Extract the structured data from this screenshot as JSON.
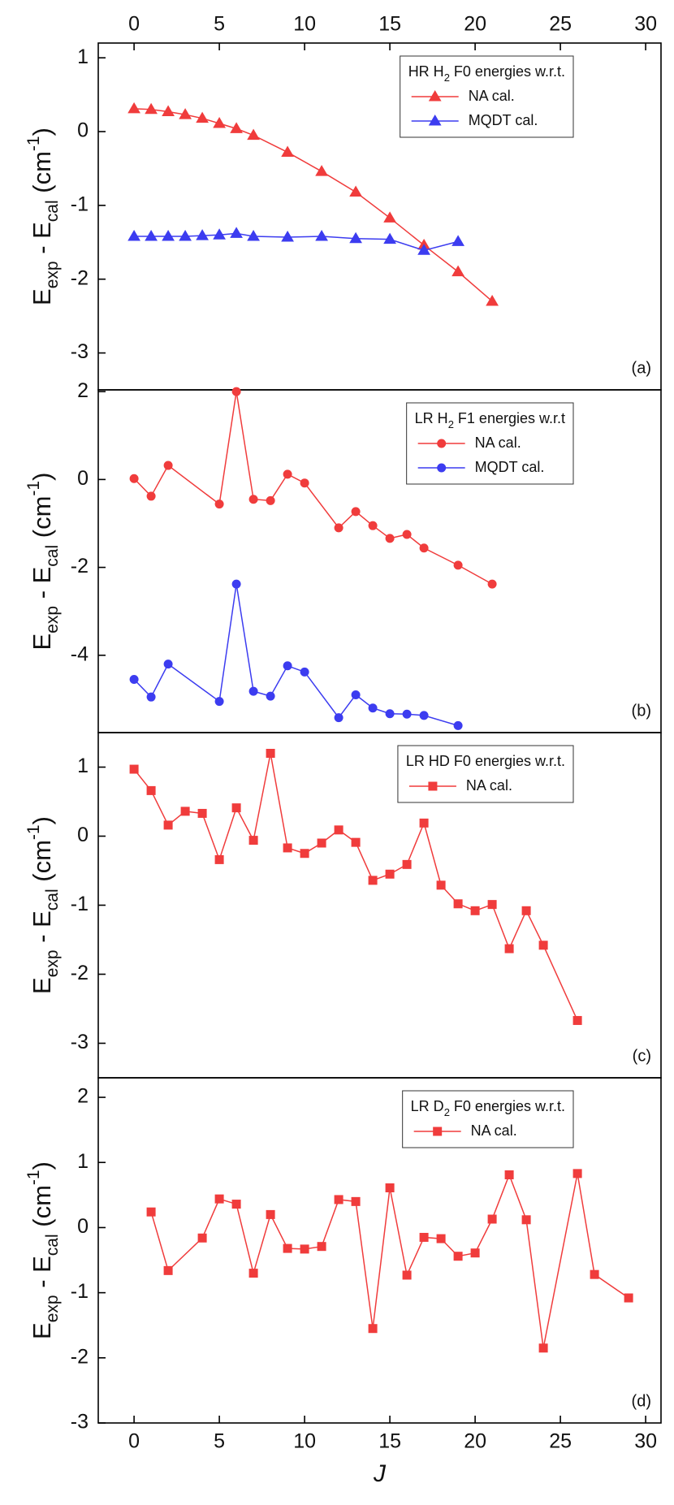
{
  "chart_data": [
    {
      "type": "line",
      "xlim": [
        -2.1,
        30.9
      ],
      "xticks": [
        0,
        5,
        10,
        15,
        20,
        25,
        30
      ],
      "ylim": [
        -3.5,
        1.2
      ],
      "yticks": [
        1,
        0,
        -1,
        -2,
        -3
      ],
      "ylabel": [
        {
          "text": "E"
        },
        {
          "text": "exp",
          "script": "sub"
        },
        {
          "text": " - E"
        },
        {
          "text": "cal",
          "script": "sub"
        },
        {
          "text": " (cm"
        },
        {
          "text": "-1",
          "script": "super"
        },
        {
          "text": ")"
        }
      ],
      "legend_title": [
        {
          "text": "HR H"
        },
        {
          "text": "2",
          "script": "sub"
        },
        {
          "text": " F0 energies w.r.t."
        }
      ],
      "panel_label": "(a)",
      "series": [
        {
          "name": "NA cal.",
          "color": "#f03c3c",
          "marker": "triangle",
          "x": [
            0,
            1,
            2,
            3,
            4,
            5,
            6,
            7,
            9,
            11,
            13,
            15,
            17,
            19,
            21
          ],
          "values": [
            0.31,
            0.3,
            0.27,
            0.23,
            0.18,
            0.11,
            0.04,
            -0.05,
            -0.28,
            -0.54,
            -0.82,
            -1.17,
            -1.54,
            -1.9,
            -2.3
          ]
        },
        {
          "name": "MQDT cal.",
          "color": "#3c3cf0",
          "marker": "triangle",
          "x": [
            0,
            1,
            2,
            3,
            4,
            5,
            6,
            7,
            9,
            11,
            13,
            15,
            17,
            19
          ],
          "values": [
            -1.42,
            -1.42,
            -1.42,
            -1.42,
            -1.41,
            -1.4,
            -1.38,
            -1.42,
            -1.43,
            -1.42,
            -1.45,
            -1.46,
            -1.61,
            -1.49
          ]
        }
      ]
    },
    {
      "type": "line",
      "xlim": [
        -2.1,
        30.9
      ],
      "ylim": [
        -5.76,
        2.04
      ],
      "yticks": [
        2,
        0,
        -2,
        -4
      ],
      "ylabel": [
        {
          "text": "E"
        },
        {
          "text": "exp",
          "script": "sub"
        },
        {
          "text": " - E"
        },
        {
          "text": "cal",
          "script": "sub"
        },
        {
          "text": " (cm"
        },
        {
          "text": "-1",
          "script": "super"
        },
        {
          "text": ")"
        }
      ],
      "legend_title": [
        {
          "text": "LR H"
        },
        {
          "text": "2",
          "script": "sub"
        },
        {
          "text": " F1 energies w.r.t"
        }
      ],
      "panel_label": "(b)",
      "series": [
        {
          "name": "NA cal.",
          "color": "#f03c3c",
          "marker": "circle",
          "x": [
            0,
            1,
            2,
            5,
            6,
            7,
            8,
            9,
            10,
            12,
            13,
            14,
            15,
            16,
            17,
            19,
            21
          ],
          "values": [
            0.02,
            -0.38,
            0.32,
            -0.56,
            2.0,
            -0.45,
            -0.48,
            0.12,
            -0.08,
            -1.1,
            -0.73,
            -1.05,
            -1.34,
            -1.25,
            -1.56,
            -1.95,
            -2.38
          ]
        },
        {
          "name": "MQDT cal.",
          "color": "#3c3cf0",
          "marker": "circle",
          "x": [
            0,
            1,
            2,
            5,
            6,
            7,
            8,
            9,
            10,
            12,
            13,
            14,
            15,
            16,
            17,
            19
          ],
          "values": [
            -4.55,
            -4.95,
            -4.2,
            -5.05,
            -2.38,
            -4.82,
            -4.93,
            -4.24,
            -4.38,
            -5.42,
            -4.9,
            -5.2,
            -5.33,
            -5.34,
            -5.37,
            -5.6
          ]
        }
      ]
    },
    {
      "type": "line",
      "xlim": [
        -2.1,
        30.9
      ],
      "ylim": [
        -3.5,
        1.5
      ],
      "yticks": [
        1,
        0,
        -1,
        -2,
        -3
      ],
      "ylabel": [
        {
          "text": "E"
        },
        {
          "text": "exp",
          "script": "sub"
        },
        {
          "text": " - E"
        },
        {
          "text": "cal",
          "script": "sub"
        },
        {
          "text": " (cm"
        },
        {
          "text": "-1",
          "script": "super"
        },
        {
          "text": ")"
        }
      ],
      "legend_title": [
        {
          "text": "LR HD F0 energies w.r.t."
        }
      ],
      "panel_label": "(c)",
      "series": [
        {
          "name": "NA cal.",
          "color": "#f03c3c",
          "marker": "square",
          "x": [
            0,
            1,
            2,
            3,
            4,
            5,
            6,
            7,
            8,
            9,
            10,
            11,
            12,
            13,
            14,
            15,
            16,
            17,
            18,
            19,
            20,
            21,
            22,
            23,
            24,
            26
          ],
          "values": [
            0.97,
            0.66,
            0.16,
            0.36,
            0.33,
            -0.34,
            0.41,
            -0.06,
            1.2,
            -0.17,
            -0.25,
            -0.1,
            0.09,
            -0.09,
            -0.64,
            -0.55,
            -0.41,
            0.19,
            -0.71,
            -0.98,
            -1.08,
            -0.99,
            -1.63,
            -1.08,
            -1.58,
            -2.67
          ]
        }
      ]
    },
    {
      "type": "line",
      "xlim": [
        -2.1,
        30.9
      ],
      "xticks": [
        0,
        5,
        10,
        15,
        20,
        25,
        30
      ],
      "xlabel": "J",
      "ylim": [
        -3,
        2.3
      ],
      "yticks": [
        2,
        1,
        0,
        -1,
        -2,
        -3
      ],
      "ylabel": [
        {
          "text": "E"
        },
        {
          "text": "exp",
          "script": "sub"
        },
        {
          "text": " - E"
        },
        {
          "text": "cal",
          "script": "sub"
        },
        {
          "text": " (cm"
        },
        {
          "text": "-1",
          "script": "super"
        },
        {
          "text": ")"
        }
      ],
      "legend_title": [
        {
          "text": "LR D"
        },
        {
          "text": "2",
          "script": "sub"
        },
        {
          "text": " F0 energies w.r.t."
        }
      ],
      "panel_label": "(d)",
      "series": [
        {
          "name": "NA cal.",
          "color": "#f03c3c",
          "marker": "square",
          "x": [
            1,
            2,
            4,
            5,
            6,
            7,
            8,
            9,
            10,
            11,
            12,
            13,
            14,
            15,
            16,
            17,
            18,
            19,
            20,
            21,
            22,
            23,
            24,
            26,
            27,
            29
          ],
          "values": [
            0.24,
            -0.66,
            -0.16,
            0.44,
            0.36,
            -0.7,
            0.2,
            -0.32,
            -0.33,
            -0.29,
            0.43,
            0.4,
            -1.55,
            0.61,
            -0.73,
            -0.15,
            -0.17,
            -0.44,
            -0.39,
            0.13,
            0.81,
            0.12,
            -1.85,
            0.83,
            -0.72,
            -1.08
          ]
        }
      ]
    }
  ]
}
